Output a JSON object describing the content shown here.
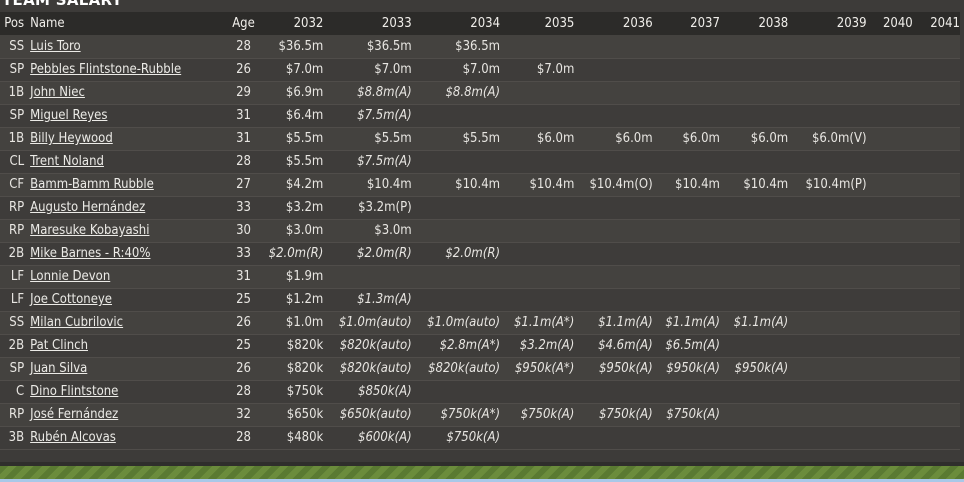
{
  "title": "TEAM SALARY",
  "columns": [
    "Pos",
    "Name",
    "Age",
    "2032",
    "2033",
    "2034",
    "2035",
    "2036",
    "2037",
    "2038",
    "2039",
    "2040",
    "2041"
  ],
  "rows": [
    {
      "pos": "SS",
      "name": "Luis Toro",
      "age": "28",
      "y": [
        [
          "$36.5m",
          0
        ],
        [
          "$36.5m",
          0
        ],
        [
          "$36.5m",
          0
        ],
        [
          "",
          0
        ],
        [
          "",
          0
        ],
        [
          "",
          0
        ],
        [
          "",
          0
        ],
        [
          "",
          0
        ],
        [
          "",
          0
        ],
        [
          "",
          0
        ]
      ]
    },
    {
      "pos": "SP",
      "name": "Pebbles Flintstone-Rubble",
      "age": "26",
      "y": [
        [
          "$7.0m",
          0
        ],
        [
          "$7.0m",
          0
        ],
        [
          "$7.0m",
          0
        ],
        [
          "$7.0m",
          0
        ],
        [
          "",
          0
        ],
        [
          "",
          0
        ],
        [
          "",
          0
        ],
        [
          "",
          0
        ],
        [
          "",
          0
        ],
        [
          "",
          0
        ]
      ]
    },
    {
      "pos": "1B",
      "name": "John Niec",
      "age": "29",
      "y": [
        [
          "$6.9m",
          0
        ],
        [
          "$8.8m(A)",
          1
        ],
        [
          "$8.8m(A)",
          1
        ],
        [
          "",
          0
        ],
        [
          "",
          0
        ],
        [
          "",
          0
        ],
        [
          "",
          0
        ],
        [
          "",
          0
        ],
        [
          "",
          0
        ],
        [
          "",
          0
        ]
      ]
    },
    {
      "pos": "SP",
      "name": "Miguel Reyes",
      "age": "31",
      "y": [
        [
          "$6.4m",
          0
        ],
        [
          "$7.5m(A)",
          1
        ],
        [
          "",
          0
        ],
        [
          "",
          0
        ],
        [
          "",
          0
        ],
        [
          "",
          0
        ],
        [
          "",
          0
        ],
        [
          "",
          0
        ],
        [
          "",
          0
        ],
        [
          "",
          0
        ]
      ]
    },
    {
      "pos": "1B",
      "name": "Billy Heywood",
      "age": "31",
      "y": [
        [
          "$5.5m",
          0
        ],
        [
          "$5.5m",
          0
        ],
        [
          "$5.5m",
          0
        ],
        [
          "$6.0m",
          0
        ],
        [
          "$6.0m",
          0
        ],
        [
          "$6.0m",
          0
        ],
        [
          "$6.0m",
          0
        ],
        [
          "$6.0m(V)",
          0
        ],
        [
          "",
          0
        ],
        [
          "",
          0
        ]
      ]
    },
    {
      "pos": "CL",
      "name": "Trent Noland",
      "age": "28",
      "y": [
        [
          "$5.5m",
          0
        ],
        [
          "$7.5m(A)",
          1
        ],
        [
          "",
          0
        ],
        [
          "",
          0
        ],
        [
          "",
          0
        ],
        [
          "",
          0
        ],
        [
          "",
          0
        ],
        [
          "",
          0
        ],
        [
          "",
          0
        ],
        [
          "",
          0
        ]
      ]
    },
    {
      "pos": "CF",
      "name": "Bamm-Bamm Rubble",
      "age": "27",
      "y": [
        [
          "$4.2m",
          0
        ],
        [
          "$10.4m",
          0
        ],
        [
          "$10.4m",
          0
        ],
        [
          "$10.4m",
          0
        ],
        [
          "$10.4m(O)",
          0
        ],
        [
          "$10.4m",
          0
        ],
        [
          "$10.4m",
          0
        ],
        [
          "$10.4m(P)",
          0
        ],
        [
          "",
          0
        ],
        [
          "",
          0
        ]
      ]
    },
    {
      "pos": "RP",
      "name": "Augusto Hernández",
      "age": "33",
      "y": [
        [
          "$3.2m",
          0
        ],
        [
          "$3.2m(P)",
          0
        ],
        [
          "",
          0
        ],
        [
          "",
          0
        ],
        [
          "",
          0
        ],
        [
          "",
          0
        ],
        [
          "",
          0
        ],
        [
          "",
          0
        ],
        [
          "",
          0
        ],
        [
          "",
          0
        ]
      ]
    },
    {
      "pos": "RP",
      "name": "Maresuke Kobayashi",
      "age": "30",
      "y": [
        [
          "$3.0m",
          0
        ],
        [
          "$3.0m",
          0
        ],
        [
          "",
          0
        ],
        [
          "",
          0
        ],
        [
          "",
          0
        ],
        [
          "",
          0
        ],
        [
          "",
          0
        ],
        [
          "",
          0
        ],
        [
          "",
          0
        ],
        [
          "",
          0
        ]
      ]
    },
    {
      "pos": "2B",
      "name": "Mike Barnes - R:40%",
      "age": "33",
      "y": [
        [
          "$2.0m(R)",
          1
        ],
        [
          "$2.0m(R)",
          1
        ],
        [
          "$2.0m(R)",
          1
        ],
        [
          "",
          0
        ],
        [
          "",
          0
        ],
        [
          "",
          0
        ],
        [
          "",
          0
        ],
        [
          "",
          0
        ],
        [
          "",
          0
        ],
        [
          "",
          0
        ]
      ]
    },
    {
      "pos": "LF",
      "name": "Lonnie Devon",
      "age": "31",
      "y": [
        [
          "$1.9m",
          0
        ],
        [
          "",
          0
        ],
        [
          "",
          0
        ],
        [
          "",
          0
        ],
        [
          "",
          0
        ],
        [
          "",
          0
        ],
        [
          "",
          0
        ],
        [
          "",
          0
        ],
        [
          "",
          0
        ],
        [
          "",
          0
        ]
      ]
    },
    {
      "pos": "LF",
      "name": "Joe Cottoneye",
      "age": "25",
      "y": [
        [
          "$1.2m",
          0
        ],
        [
          "$1.3m(A)",
          1
        ],
        [
          "",
          0
        ],
        [
          "",
          0
        ],
        [
          "",
          0
        ],
        [
          "",
          0
        ],
        [
          "",
          0
        ],
        [
          "",
          0
        ],
        [
          "",
          0
        ],
        [
          "",
          0
        ]
      ]
    },
    {
      "pos": "SS",
      "name": "Milan Cubrilovic",
      "age": "26",
      "y": [
        [
          "$1.0m",
          0
        ],
        [
          "$1.0m(auto)",
          1
        ],
        [
          "$1.0m(auto)",
          1
        ],
        [
          "$1.1m(A*)",
          1
        ],
        [
          "$1.1m(A)",
          1
        ],
        [
          "$1.1m(A)",
          1
        ],
        [
          "$1.1m(A)",
          1
        ],
        [
          "",
          0
        ],
        [
          "",
          0
        ],
        [
          "",
          0
        ]
      ]
    },
    {
      "pos": "2B",
      "name": "Pat Clinch",
      "age": "25",
      "y": [
        [
          "$820k",
          0
        ],
        [
          "$820k(auto)",
          1
        ],
        [
          "$2.8m(A*)",
          1
        ],
        [
          "$3.2m(A)",
          1
        ],
        [
          "$4.6m(A)",
          1
        ],
        [
          "$6.5m(A)",
          1
        ],
        [
          "",
          0
        ],
        [
          "",
          0
        ],
        [
          "",
          0
        ],
        [
          "",
          0
        ]
      ]
    },
    {
      "pos": "SP",
      "name": "Juan Silva",
      "age": "26",
      "y": [
        [
          "$820k",
          0
        ],
        [
          "$820k(auto)",
          1
        ],
        [
          "$820k(auto)",
          1
        ],
        [
          "$950k(A*)",
          1
        ],
        [
          "$950k(A)",
          1
        ],
        [
          "$950k(A)",
          1
        ],
        [
          "$950k(A)",
          1
        ],
        [
          "",
          0
        ],
        [
          "",
          0
        ],
        [
          "",
          0
        ]
      ]
    },
    {
      "pos": "C",
      "name": "Dino Flintstone",
      "age": "28",
      "y": [
        [
          "$750k",
          0
        ],
        [
          "$850k(A)",
          1
        ],
        [
          "",
          0
        ],
        [
          "",
          0
        ],
        [
          "",
          0
        ],
        [
          "",
          0
        ],
        [
          "",
          0
        ],
        [
          "",
          0
        ],
        [
          "",
          0
        ],
        [
          "",
          0
        ]
      ]
    },
    {
      "pos": "RP",
      "name": "José Fernández",
      "age": "32",
      "y": [
        [
          "$650k",
          0
        ],
        [
          "$650k(auto)",
          1
        ],
        [
          "$750k(A*)",
          1
        ],
        [
          "$750k(A)",
          1
        ],
        [
          "$750k(A)",
          1
        ],
        [
          "$750k(A)",
          1
        ],
        [
          "",
          0
        ],
        [
          "",
          0
        ],
        [
          "",
          0
        ],
        [
          "",
          0
        ]
      ]
    },
    {
      "pos": "3B",
      "name": "Rubén Alcovas",
      "age": "28",
      "y": [
        [
          "$480k",
          0
        ],
        [
          "$600k(A)",
          1
        ],
        [
          "$750k(A)",
          1
        ],
        [
          "",
          0
        ],
        [
          "",
          0
        ],
        [
          "",
          0
        ],
        [
          "",
          0
        ],
        [
          "",
          0
        ],
        [
          "",
          0
        ],
        [
          "",
          0
        ]
      ]
    }
  ]
}
